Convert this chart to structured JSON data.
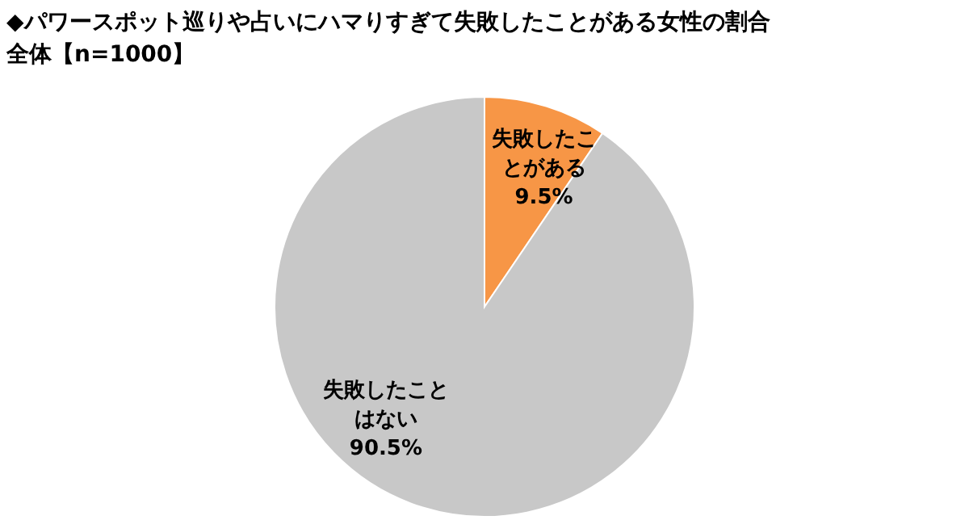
{
  "chart_data": {
    "type": "pie",
    "title": "◆パワースポット巡りや占いにハマりすぎて失敗したことがある女性の割合",
    "subtitle": "全体【n=1000】",
    "categories": [
      "失敗したことがある",
      "失敗したことはない"
    ],
    "values": [
      9.5,
      90.5
    ],
    "value_labels": [
      "9.5%",
      "90.5%"
    ],
    "colors": [
      "#f79646",
      "#c8c8c8"
    ]
  }
}
